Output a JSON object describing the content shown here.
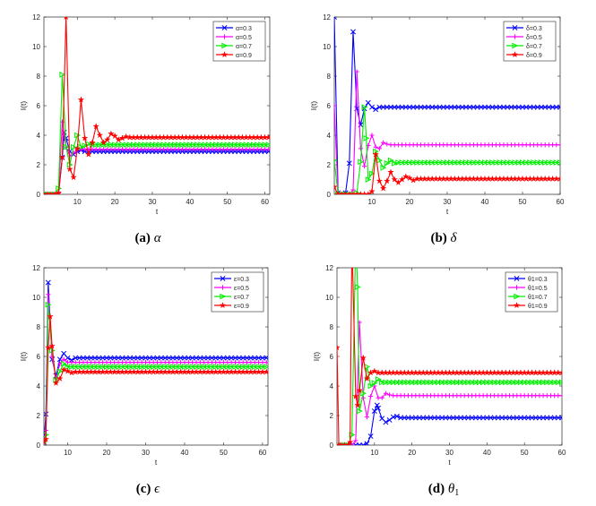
{
  "chart_data": [
    {
      "type": "line",
      "caption_label": "(a)",
      "caption_symbol": "α",
      "xlabel": "t",
      "ylabel": "I(t)",
      "xlim": [
        1.1,
        61.3
      ],
      "ylim": [
        0,
        12
      ],
      "xticks": [
        10,
        20,
        30,
        40,
        50,
        60
      ],
      "yticks": [
        0,
        2,
        4,
        6,
        8,
        10,
        12
      ],
      "legend": "top-right",
      "series": [
        {
          "name": "α=0.3",
          "color": "#0000ff",
          "marker": "x",
          "points": [
            [
              1,
              0
            ],
            [
              2,
              0
            ],
            [
              3,
              0
            ],
            [
              4,
              0
            ],
            [
              5,
              0
            ],
            [
              6,
              2.5
            ],
            [
              6.5,
              4.2
            ],
            [
              7,
              3.8
            ],
            [
              8,
              2.9
            ],
            [
              9,
              2.7
            ],
            [
              10,
              2.9
            ],
            [
              11,
              3.0
            ]
          ],
          "steady": 2.9,
          "xend": 61
        },
        {
          "name": "α=0.5",
          "color": "#ff00ff",
          "marker": "+",
          "points": [
            [
              1,
              0
            ],
            [
              2,
              0
            ],
            [
              3,
              0
            ],
            [
              4,
              0
            ],
            [
              5,
              0.1
            ],
            [
              6,
              4.9
            ],
            [
              7,
              3.2
            ],
            [
              8,
              2.6
            ],
            [
              9,
              2.8
            ],
            [
              10,
              3.0
            ]
          ],
          "steady": 3.05,
          "xend": 61
        },
        {
          "name": "α=0.7",
          "color": "#00ee00",
          "marker": "tri",
          "points": [
            [
              1,
              0
            ],
            [
              2,
              0
            ],
            [
              3,
              0
            ],
            [
              4,
              0
            ],
            [
              5,
              0.4
            ],
            [
              6,
              8.1
            ],
            [
              7,
              3.2
            ],
            [
              8,
              2.0
            ],
            [
              9,
              3.2
            ],
            [
              10,
              4.0
            ],
            [
              11,
              3.2
            ],
            [
              12,
              3.3
            ],
            [
              13,
              3.4
            ]
          ],
          "steady": 3.35,
          "xend": 61
        },
        {
          "name": "α=0.9",
          "color": "#ff0000",
          "marker": "star",
          "points": [
            [
              1,
              0
            ],
            [
              2,
              0
            ],
            [
              3,
              0
            ],
            [
              4,
              0
            ],
            [
              5,
              0.1
            ],
            [
              6,
              2.5
            ],
            [
              7,
              12
            ],
            [
              8,
              1.7
            ],
            [
              9,
              1.15
            ],
            [
              10,
              3.1
            ],
            [
              11,
              6.4
            ],
            [
              12,
              3.8
            ],
            [
              13,
              2.7
            ],
            [
              14,
              3.5
            ],
            [
              15,
              4.6
            ],
            [
              16,
              4.0
            ],
            [
              17,
              3.5
            ],
            [
              18,
              3.7
            ],
            [
              19,
              4.1
            ],
            [
              20,
              3.95
            ],
            [
              21,
              3.7
            ],
            [
              22,
              3.8
            ],
            [
              23,
              3.9
            ]
          ],
          "steady": 3.85,
          "xend": 61
        }
      ]
    },
    {
      "type": "line",
      "caption_label": "(b)",
      "caption_symbol": "δ",
      "xlabel": "t",
      "ylabel": "I(t)",
      "xlim": [
        0,
        60
      ],
      "ylim": [
        0,
        12
      ],
      "xticks": [
        10,
        20,
        30,
        40,
        50,
        60
      ],
      "yticks": [
        0,
        2,
        4,
        6,
        8,
        10,
        12
      ],
      "legend": "top-right",
      "series": [
        {
          "name": "δ=0.3",
          "color": "#0000ff",
          "marker": "x",
          "points": [
            [
              0,
              12
            ],
            [
              1,
              0.1
            ],
            [
              2,
              0
            ],
            [
              3,
              0.1
            ],
            [
              4,
              2.1
            ],
            [
              5,
              11
            ],
            [
              6,
              5.8
            ],
            [
              7,
              4.7
            ],
            [
              8,
              5.8
            ],
            [
              9,
              6.2
            ],
            [
              10,
              5.9
            ],
            [
              11,
              5.75
            ],
            [
              12,
              5.9
            ]
          ],
          "steady": 5.9,
          "xend": 60
        },
        {
          "name": "δ=0.5",
          "color": "#ff00ff",
          "marker": "+",
          "points": [
            [
              0,
              6
            ],
            [
              1,
              0
            ],
            [
              2,
              0
            ],
            [
              3,
              0
            ],
            [
              4,
              0
            ],
            [
              5,
              0.3
            ],
            [
              6,
              8.3
            ],
            [
              7,
              3.1
            ],
            [
              8,
              1.9
            ],
            [
              9,
              3.3
            ],
            [
              10,
              4.0
            ],
            [
              11,
              3.2
            ],
            [
              12,
              3.1
            ],
            [
              13,
              3.5
            ],
            [
              14,
              3.4
            ]
          ],
          "steady": 3.35,
          "xend": 60
        },
        {
          "name": "δ=0.7",
          "color": "#00ee00",
          "marker": "tri",
          "points": [
            [
              0,
              2.3
            ],
            [
              1,
              0
            ],
            [
              2,
              0
            ],
            [
              3,
              0
            ],
            [
              4,
              0
            ],
            [
              5,
              0
            ],
            [
              6,
              0.1
            ],
            [
              7,
              2.2
            ],
            [
              8,
              5.9
            ],
            [
              8.5,
              3.8
            ],
            [
              9,
              1.0
            ],
            [
              10,
              1.4
            ],
            [
              11,
              2.9
            ],
            [
              12,
              2.3
            ],
            [
              13,
              1.8
            ],
            [
              14,
              2.1
            ],
            [
              15,
              2.3
            ],
            [
              16,
              2.1
            ]
          ],
          "steady": 2.15,
          "xend": 60
        },
        {
          "name": "δ=0.9",
          "color": "#ff0000",
          "marker": "star",
          "points": [
            [
              0,
              0.5
            ],
            [
              1,
              0
            ],
            [
              2,
              0
            ],
            [
              3,
              0
            ],
            [
              4,
              0
            ],
            [
              5,
              0
            ],
            [
              6,
              0
            ],
            [
              7,
              0
            ],
            [
              8,
              0
            ],
            [
              9,
              0
            ],
            [
              10,
              0.2
            ],
            [
              11,
              2.7
            ],
            [
              12,
              0.9
            ],
            [
              13,
              0.4
            ],
            [
              14,
              0.9
            ],
            [
              15,
              1.5
            ],
            [
              16,
              1.0
            ],
            [
              17,
              0.8
            ],
            [
              18,
              1.0
            ],
            [
              19,
              1.2
            ],
            [
              20,
              1.1
            ],
            [
              21,
              0.95
            ],
            [
              22,
              1.05
            ]
          ],
          "steady": 1.05,
          "xend": 60
        }
      ]
    },
    {
      "type": "line",
      "caption_label": "(c)",
      "caption_symbol": "ϵ",
      "xlabel": "t",
      "ylabel": "I(t)",
      "xlim": [
        3.9,
        61.4
      ],
      "ylim": [
        0,
        12
      ],
      "xticks": [
        10,
        20,
        30,
        40,
        50,
        60
      ],
      "yticks": [
        0,
        2,
        4,
        6,
        8,
        10,
        12
      ],
      "legend": "top-right",
      "series": [
        {
          "name": "ε=0.3",
          "color": "#0000ff",
          "marker": "x",
          "points": [
            [
              3.9,
              0.2
            ],
            [
              4.4,
              2.1
            ],
            [
              5,
              11
            ],
            [
              6,
              5.8
            ],
            [
              7,
              4.7
            ],
            [
              8,
              5.8
            ],
            [
              9,
              6.2
            ],
            [
              10,
              5.9
            ],
            [
              11,
              5.75
            ]
          ],
          "steady": 5.9,
          "xend": 61
        },
        {
          "name": "ε=0.5",
          "color": "#ff00ff",
          "marker": "+",
          "points": [
            [
              3.9,
              0.2
            ],
            [
              4.4,
              1.0
            ],
            [
              5,
              10.2
            ],
            [
              6,
              6.0
            ],
            [
              7,
              4.5
            ],
            [
              8,
              5.5
            ],
            [
              9,
              5.8
            ],
            [
              10,
              5.6
            ]
          ],
          "steady": 5.6,
          "xend": 61
        },
        {
          "name": "ε=0.7",
          "color": "#00ee00",
          "marker": "tri",
          "points": [
            [
              3.9,
              0.2
            ],
            [
              4.4,
              0.7
            ],
            [
              5,
              9.5
            ],
            [
              6,
              6.4
            ],
            [
              7,
              4.4
            ],
            [
              8,
              5.0
            ],
            [
              9,
              5.5
            ],
            [
              10,
              5.3
            ]
          ],
          "steady": 5.3,
          "xend": 61
        },
        {
          "name": "ε=0.9",
          "color": "#ff0000",
          "marker": "star",
          "points": [
            [
              3.9,
              0.2
            ],
            [
              4.4,
              0.4
            ],
            [
              5,
              6.6
            ],
            [
              5.5,
              8.7
            ],
            [
              6,
              6.7
            ],
            [
              7,
              4.2
            ],
            [
              8,
              4.5
            ],
            [
              9,
              5.1
            ],
            [
              10,
              5.0
            ],
            [
              11,
              4.9
            ]
          ],
          "steady": 4.95,
          "xend": 61
        }
      ]
    },
    {
      "type": "line",
      "caption_label": "(d)",
      "caption_symbol": "θ",
      "caption_subscript": "1",
      "xlabel": "t",
      "ylabel": "I(t)",
      "xlim": [
        0,
        60
      ],
      "ylim": [
        0,
        12
      ],
      "xticks": [
        10,
        20,
        30,
        40,
        50,
        60
      ],
      "yticks": [
        0,
        2,
        4,
        6,
        8,
        10,
        12
      ],
      "legend": "top-right",
      "series": [
        {
          "name": "θ1=0.3",
          "color": "#0000ff",
          "marker": "x",
          "points": [
            [
              0,
              0
            ],
            [
              1,
              0
            ],
            [
              2,
              0
            ],
            [
              3,
              0
            ],
            [
              4,
              0
            ],
            [
              5,
              0
            ],
            [
              6,
              0
            ],
            [
              7,
              0
            ],
            [
              8,
              0.1
            ],
            [
              9,
              0.6
            ],
            [
              10,
              2.3
            ],
            [
              10.7,
              2.7
            ],
            [
              11,
              2.5
            ],
            [
              12,
              1.8
            ],
            [
              13,
              1.55
            ],
            [
              14,
              1.7
            ],
            [
              15,
              1.9
            ],
            [
              16,
              1.95
            ],
            [
              17,
              1.85
            ]
          ],
          "steady": 1.85,
          "xend": 60
        },
        {
          "name": "θ1=0.5",
          "color": "#ff00ff",
          "marker": "+",
          "points": [
            [
              0,
              0
            ],
            [
              1,
              0
            ],
            [
              2,
              0
            ],
            [
              3,
              0
            ],
            [
              4,
              0
            ],
            [
              5,
              0.3
            ],
            [
              6,
              8.3
            ],
            [
              7,
              3.2
            ],
            [
              8,
              1.9
            ],
            [
              9,
              3.3
            ],
            [
              10,
              4.0
            ],
            [
              11,
              3.2
            ],
            [
              12,
              3.2
            ],
            [
              13,
              3.5
            ],
            [
              14,
              3.4
            ]
          ],
          "steady": 3.35,
          "xend": 60
        },
        {
          "name": "θ1=0.7",
          "color": "#00ee00",
          "marker": "tri",
          "points": [
            [
              0,
              0
            ],
            [
              1,
              0
            ],
            [
              2,
              0
            ],
            [
              3,
              0
            ],
            [
              4,
              0.7
            ],
            [
              5,
              14
            ],
            [
              5.5,
              10.7
            ],
            [
              6,
              2.3
            ],
            [
              7,
              3.5
            ],
            [
              8,
              5.3
            ],
            [
              9,
              4.0
            ],
            [
              10,
              4.2
            ],
            [
              11,
              4.45
            ],
            [
              12,
              4.25
            ]
          ],
          "steady": 4.25,
          "xend": 60
        },
        {
          "name": "θ1=0.9",
          "color": "#ff0000",
          "marker": "star",
          "points": [
            [
              0,
              6.6
            ],
            [
              0.5,
              0
            ],
            [
              1,
              0
            ],
            [
              2,
              0
            ],
            [
              3,
              0
            ],
            [
              3.5,
              0.2
            ],
            [
              4,
              14
            ],
            [
              5,
              3.3
            ],
            [
              5.5,
              2.7
            ],
            [
              6,
              3.7
            ],
            [
              7,
              5.9
            ],
            [
              8,
              4.5
            ],
            [
              9,
              4.9
            ],
            [
              10,
              5.0
            ]
          ],
          "steady": 4.9,
          "xend": 60
        }
      ]
    }
  ]
}
